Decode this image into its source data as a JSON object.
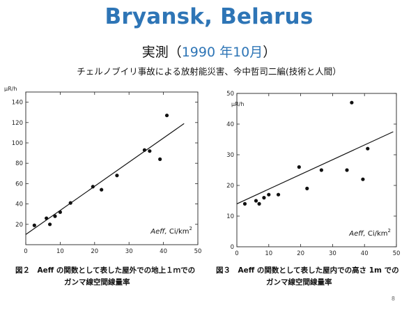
{
  "slide": {
    "title": "Bryansk, Belarus",
    "subtitle_prefix": "実測（",
    "subtitle_year": "1990 年10月",
    "subtitle_suffix": "）",
    "source": "チェルノブイリ事故による放射能災害、今中哲司二編(技術と人間）",
    "page_number": "8"
  },
  "captions": {
    "left_line1": "図２　Aeff の関数として表した屋外での地上１ｍでの",
    "left_line2": "ガンマ線空間線量率",
    "right_line1": "図３　Aeff の関数として表した屋内での高さ 1m での",
    "right_line2": "ガンマ線空間線量率"
  },
  "chart_data": [
    {
      "type": "scatter",
      "title": "",
      "ylabel": "μR/h",
      "xlabel": "Aeff, Ci/km²",
      "xlim": [
        0,
        50
      ],
      "ylim": [
        0,
        150
      ],
      "xticks": [
        0,
        10,
        20,
        30,
        40,
        50
      ],
      "yticks": [
        20,
        40,
        60,
        80,
        100,
        120,
        140
      ],
      "points": [
        [
          2.5,
          19
        ],
        [
          6,
          26
        ],
        [
          7,
          20
        ],
        [
          8.5,
          28
        ],
        [
          10,
          32
        ],
        [
          13,
          41
        ],
        [
          19.5,
          57
        ],
        [
          22,
          54
        ],
        [
          26.5,
          68
        ],
        [
          34.5,
          93
        ],
        [
          36,
          92
        ],
        [
          39,
          84
        ],
        [
          41,
          127
        ]
      ],
      "fit_line": [
        [
          0,
          10
        ],
        [
          46,
          119
        ]
      ],
      "grid": false
    },
    {
      "type": "scatter",
      "title": "",
      "ylabel": "μR/h",
      "xlabel": "Aeff, Ci/km²",
      "xlim": [
        0,
        50
      ],
      "ylim": [
        0,
        50
      ],
      "xticks": [
        0,
        10,
        20,
        30,
        40,
        50
      ],
      "yticks": [
        0,
        10,
        20,
        30,
        40,
        50
      ],
      "points": [
        [
          2.5,
          14
        ],
        [
          6,
          15
        ],
        [
          7,
          14
        ],
        [
          8.5,
          16
        ],
        [
          10,
          17
        ],
        [
          13,
          17
        ],
        [
          19.5,
          26
        ],
        [
          22,
          19
        ],
        [
          26.5,
          25
        ],
        [
          34.5,
          25
        ],
        [
          36,
          47
        ],
        [
          39.5,
          22
        ],
        [
          41,
          32
        ]
      ],
      "fit_line": [
        [
          0,
          14
        ],
        [
          49,
          37.5
        ]
      ],
      "grid": false
    }
  ]
}
